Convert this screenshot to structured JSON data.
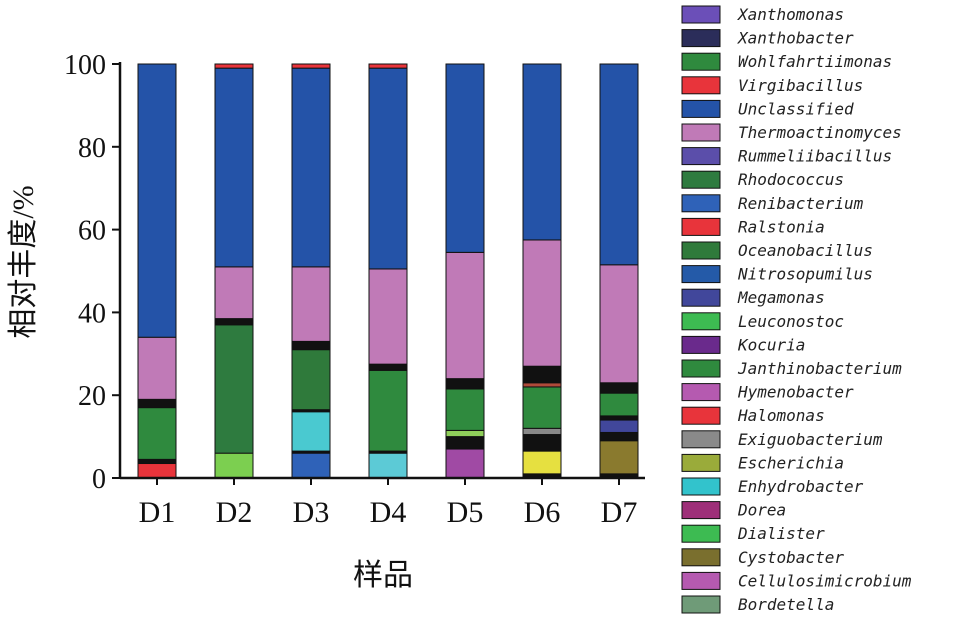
{
  "chart_data": {
    "type": "bar",
    "stacked": true,
    "xlabel": "样品",
    "ylabel": "相对丰度/%",
    "ylim": [
      0,
      100
    ],
    "yticks": [
      0,
      20,
      40,
      60,
      80,
      100
    ],
    "categories": [
      "D1",
      "D2",
      "D3",
      "D4",
      "D5",
      "D6",
      "D7"
    ],
    "legend": {
      "placement": "right",
      "items": [
        {
          "name": "Xanthomonas",
          "color": "#6b4fb8"
        },
        {
          "name": "Xanthobacter",
          "color": "#2b2d5a"
        },
        {
          "name": "Wohlfahrtiimonas",
          "color": "#2f8a3e"
        },
        {
          "name": "Virgibacillus",
          "color": "#e8343b"
        },
        {
          "name": "Unclassified",
          "color": "#2453a8"
        },
        {
          "name": "Thermoactinomyces",
          "color": "#c07ab7"
        },
        {
          "name": "Rummeliibacillus",
          "color": "#5b4eaa"
        },
        {
          "name": "Rhodococcus",
          "color": "#2e7b3f"
        },
        {
          "name": "Renibacterium",
          "color": "#2f62b8"
        },
        {
          "name": "Ralstonia",
          "color": "#e8343b"
        },
        {
          "name": "Oceanobacillus",
          "color": "#2f7a3b"
        },
        {
          "name": "Nitrosopumilus",
          "color": "#245aa8"
        },
        {
          "name": "Megamonas",
          "color": "#41479b"
        },
        {
          "name": "Leuconostoc",
          "color": "#3dbb52"
        },
        {
          "name": "Kocuria",
          "color": "#6a2a8c"
        },
        {
          "name": "Janthinobacterium",
          "color": "#2f8a3e"
        },
        {
          "name": "Hymenobacter",
          "color": "#b55ab0"
        },
        {
          "name": "Halomonas",
          "color": "#e8343b"
        },
        {
          "name": "Exiguobacterium",
          "color": "#8a8a8a"
        },
        {
          "name": "Escherichia",
          "color": "#9aab3a"
        },
        {
          "name": "Enhydrobacter",
          "color": "#32c3cc"
        },
        {
          "name": "Dorea",
          "color": "#9e2f79"
        },
        {
          "name": "Dialister",
          "color": "#3dbb52"
        },
        {
          "name": "Cystobacter",
          "color": "#7a6f2e"
        },
        {
          "name": "Cellulosimicrobium",
          "color": "#b55ab0"
        },
        {
          "name": "Bordetella",
          "color": "#6f9b78"
        }
      ]
    },
    "stacks": [
      {
        "category": "D1",
        "segments": [
          {
            "name": "Ralstonia",
            "value": 3.5,
            "color": "#e8343b"
          },
          {
            "name": "Other",
            "value": 1,
            "color": "#111111"
          },
          {
            "name": "Janthinobacterium",
            "value": 12.5,
            "color": "#2f8a3e"
          },
          {
            "name": "Other",
            "value": 2,
            "color": "#111111"
          },
          {
            "name": "Thermoactinomyces",
            "value": 15,
            "color": "#c07ab7"
          },
          {
            "name": "Unclassified",
            "value": 66,
            "color": "#2453a8"
          }
        ]
      },
      {
        "category": "D2",
        "segments": [
          {
            "name": "Leuconostoc",
            "value": 6,
            "color": "#7ccf50"
          },
          {
            "name": "Rhodococcus",
            "value": 31,
            "color": "#2e7b3f"
          },
          {
            "name": "Other",
            "value": 1.5,
            "color": "#111111"
          },
          {
            "name": "Thermoactinomyces",
            "value": 12.5,
            "color": "#c07ab7"
          },
          {
            "name": "Unclassified",
            "value": 48,
            "color": "#2453a8"
          },
          {
            "name": "Virgibacillus",
            "value": 1,
            "color": "#e8343b"
          }
        ]
      },
      {
        "category": "D3",
        "segments": [
          {
            "name": "Nitrosopumilus",
            "value": 6,
            "color": "#2f62b8"
          },
          {
            "name": "Other",
            "value": 0.5,
            "color": "#111111"
          },
          {
            "name": "Enhydrobacter",
            "value": 9.5,
            "color": "#4ac9d0"
          },
          {
            "name": "Other",
            "value": 0.5,
            "color": "#111111"
          },
          {
            "name": "Oceanobacillus",
            "value": 14.5,
            "color": "#2f7a3b"
          },
          {
            "name": "Other",
            "value": 2,
            "color": "#111111"
          },
          {
            "name": "Thermoactinomyces",
            "value": 18,
            "color": "#c07ab7"
          },
          {
            "name": "Unclassified",
            "value": 48,
            "color": "#2453a8"
          },
          {
            "name": "Virgibacillus",
            "value": 1,
            "color": "#e8343b"
          }
        ]
      },
      {
        "category": "D4",
        "segments": [
          {
            "name": "Enhydrobacter",
            "value": 6,
            "color": "#5ccad6"
          },
          {
            "name": "Other",
            "value": 0.5,
            "color": "#111111"
          },
          {
            "name": "Janthinobacterium",
            "value": 19.5,
            "color": "#2f8a3e"
          },
          {
            "name": "Other",
            "value": 1.5,
            "color": "#111111"
          },
          {
            "name": "Thermoactinomyces",
            "value": 23,
            "color": "#c07ab7"
          },
          {
            "name": "Unclassified",
            "value": 48.5,
            "color": "#2453a8"
          },
          {
            "name": "Virgibacillus",
            "value": 1,
            "color": "#e8343b"
          }
        ]
      },
      {
        "category": "D5",
        "segments": [
          {
            "name": "Cellulosimicrobium",
            "value": 7,
            "color": "#a04aa4"
          },
          {
            "name": "Other",
            "value": 3,
            "color": "#111111"
          },
          {
            "name": "Escherichia",
            "value": 1.5,
            "color": "#8fcf5a"
          },
          {
            "name": "Janthinobacterium",
            "value": 10,
            "color": "#2f8a3e"
          },
          {
            "name": "Other",
            "value": 2.5,
            "color": "#111111"
          },
          {
            "name": "Thermoactinomyces",
            "value": 30.5,
            "color": "#c07ab7"
          },
          {
            "name": "Unclassified",
            "value": 45.5,
            "color": "#2453a8"
          }
        ]
      },
      {
        "category": "D6",
        "segments": [
          {
            "name": "Other",
            "value": 1,
            "color": "#111111"
          },
          {
            "name": "Escherichia",
            "value": 5.5,
            "color": "#e6e040"
          },
          {
            "name": "Other",
            "value": 4,
            "color": "#111111"
          },
          {
            "name": "Exiguobacterium",
            "value": 1.5,
            "color": "#888888"
          },
          {
            "name": "Janthinobacterium",
            "value": 10,
            "color": "#2f8a3e"
          },
          {
            "name": "Halomonas",
            "value": 1,
            "color": "#b04a3a"
          },
          {
            "name": "Other",
            "value": 4,
            "color": "#111111"
          },
          {
            "name": "Thermoactinomyces",
            "value": 30.5,
            "color": "#c07ab7"
          },
          {
            "name": "Unclassified",
            "value": 42.5,
            "color": "#2453a8"
          }
        ]
      },
      {
        "category": "D7",
        "segments": [
          {
            "name": "Other",
            "value": 1,
            "color": "#111111"
          },
          {
            "name": "Cystobacter",
            "value": 8,
            "color": "#8a7a2e"
          },
          {
            "name": "Other",
            "value": 2,
            "color": "#111111"
          },
          {
            "name": "Megamonas",
            "value": 3,
            "color": "#41479b"
          },
          {
            "name": "Other",
            "value": 1,
            "color": "#111111"
          },
          {
            "name": "Janthinobacterium",
            "value": 5.5,
            "color": "#2f8a3e"
          },
          {
            "name": "Other",
            "value": 2.5,
            "color": "#111111"
          },
          {
            "name": "Thermoactinomyces",
            "value": 28.5,
            "color": "#c07ab7"
          },
          {
            "name": "Unclassified",
            "value": 48.5,
            "color": "#2453a8"
          }
        ]
      }
    ]
  }
}
